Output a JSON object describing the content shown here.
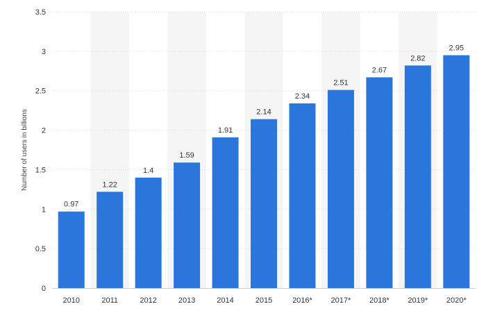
{
  "chart_data": {
    "type": "bar",
    "categories": [
      "2010",
      "2011",
      "2012",
      "2013",
      "2014",
      "2015",
      "2016*",
      "2017*",
      "2018*",
      "2019*",
      "2020*"
    ],
    "values": [
      0.97,
      1.22,
      1.4,
      1.59,
      1.91,
      2.14,
      2.34,
      2.51,
      2.67,
      2.82,
      2.95
    ],
    "value_labels": [
      "0.97",
      "1.22",
      "1.4",
      "1.59",
      "1.91",
      "2.14",
      "2.34",
      "2.51",
      "2.67",
      "2.82",
      "2.95"
    ],
    "title": "",
    "xlabel": "",
    "ylabel": "Number of users in billions",
    "ylim": [
      0,
      3.5
    ],
    "yticks": [
      0,
      0.5,
      1,
      1.5,
      2,
      2.5,
      3,
      3.5
    ],
    "ytick_labels": [
      "0",
      "0.5",
      "1",
      "1.5",
      "2",
      "2.5",
      "3",
      "3.5"
    ],
    "grid": true,
    "legend": "none",
    "colors": {
      "bar": "#2a76dd",
      "band": "#f5f5f5",
      "grid": "#dddddd",
      "axis": "#cccccc",
      "text": "#333333"
    }
  }
}
